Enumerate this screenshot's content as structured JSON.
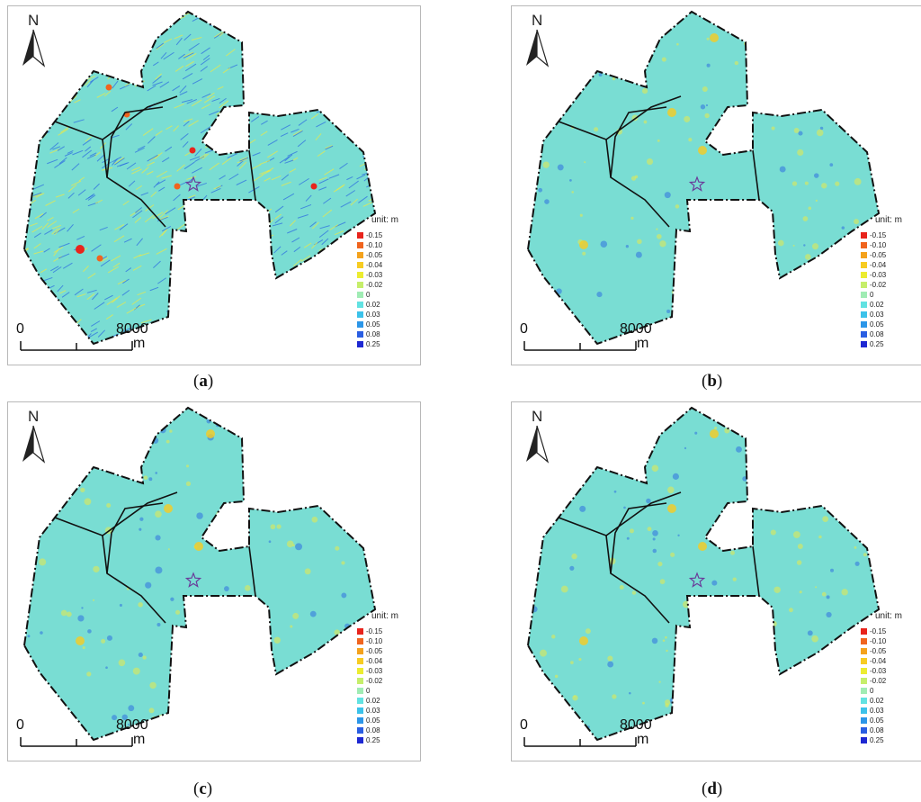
{
  "panels": [
    {
      "id": "a",
      "caption_letter": "a",
      "style": "noisy"
    },
    {
      "id": "b",
      "caption_letter": "b",
      "style": "smooth"
    },
    {
      "id": "c",
      "caption_letter": "c",
      "style": "smooth"
    },
    {
      "id": "d",
      "caption_letter": "d",
      "style": "smooth"
    }
  ],
  "north_label": "N",
  "legend": {
    "unit_label": "unit: m",
    "items": [
      {
        "label": "-0.15",
        "color": "#e8241c"
      },
      {
        "label": "-0.10",
        "color": "#f0641e"
      },
      {
        "label": "-0.05",
        "color": "#f4a21c"
      },
      {
        "label": "-0.04",
        "color": "#f7cc22"
      },
      {
        "label": "-0.03",
        "color": "#ecec30"
      },
      {
        "label": "-0.02",
        "color": "#c6ee6a"
      },
      {
        "label": "0",
        "color": "#a0ecb4"
      },
      {
        "label": "0.02",
        "color": "#62e2e2"
      },
      {
        "label": "0.03",
        "color": "#3cc2ea"
      },
      {
        "label": "0.05",
        "color": "#2c96e8"
      },
      {
        "label": "0.08",
        "color": "#2a5ee2"
      },
      {
        "label": "0.25",
        "color": "#1e28d2"
      }
    ]
  },
  "scale": {
    "start_label": "0",
    "end_label": "8000",
    "unit": "m"
  },
  "colors": {
    "base_field": "#79ddd3",
    "noise_blue": "#2f6fe0",
    "noise_yellow": "#e9e94a",
    "boundary": "#111111",
    "marker_star": "#6a3d9a"
  }
}
